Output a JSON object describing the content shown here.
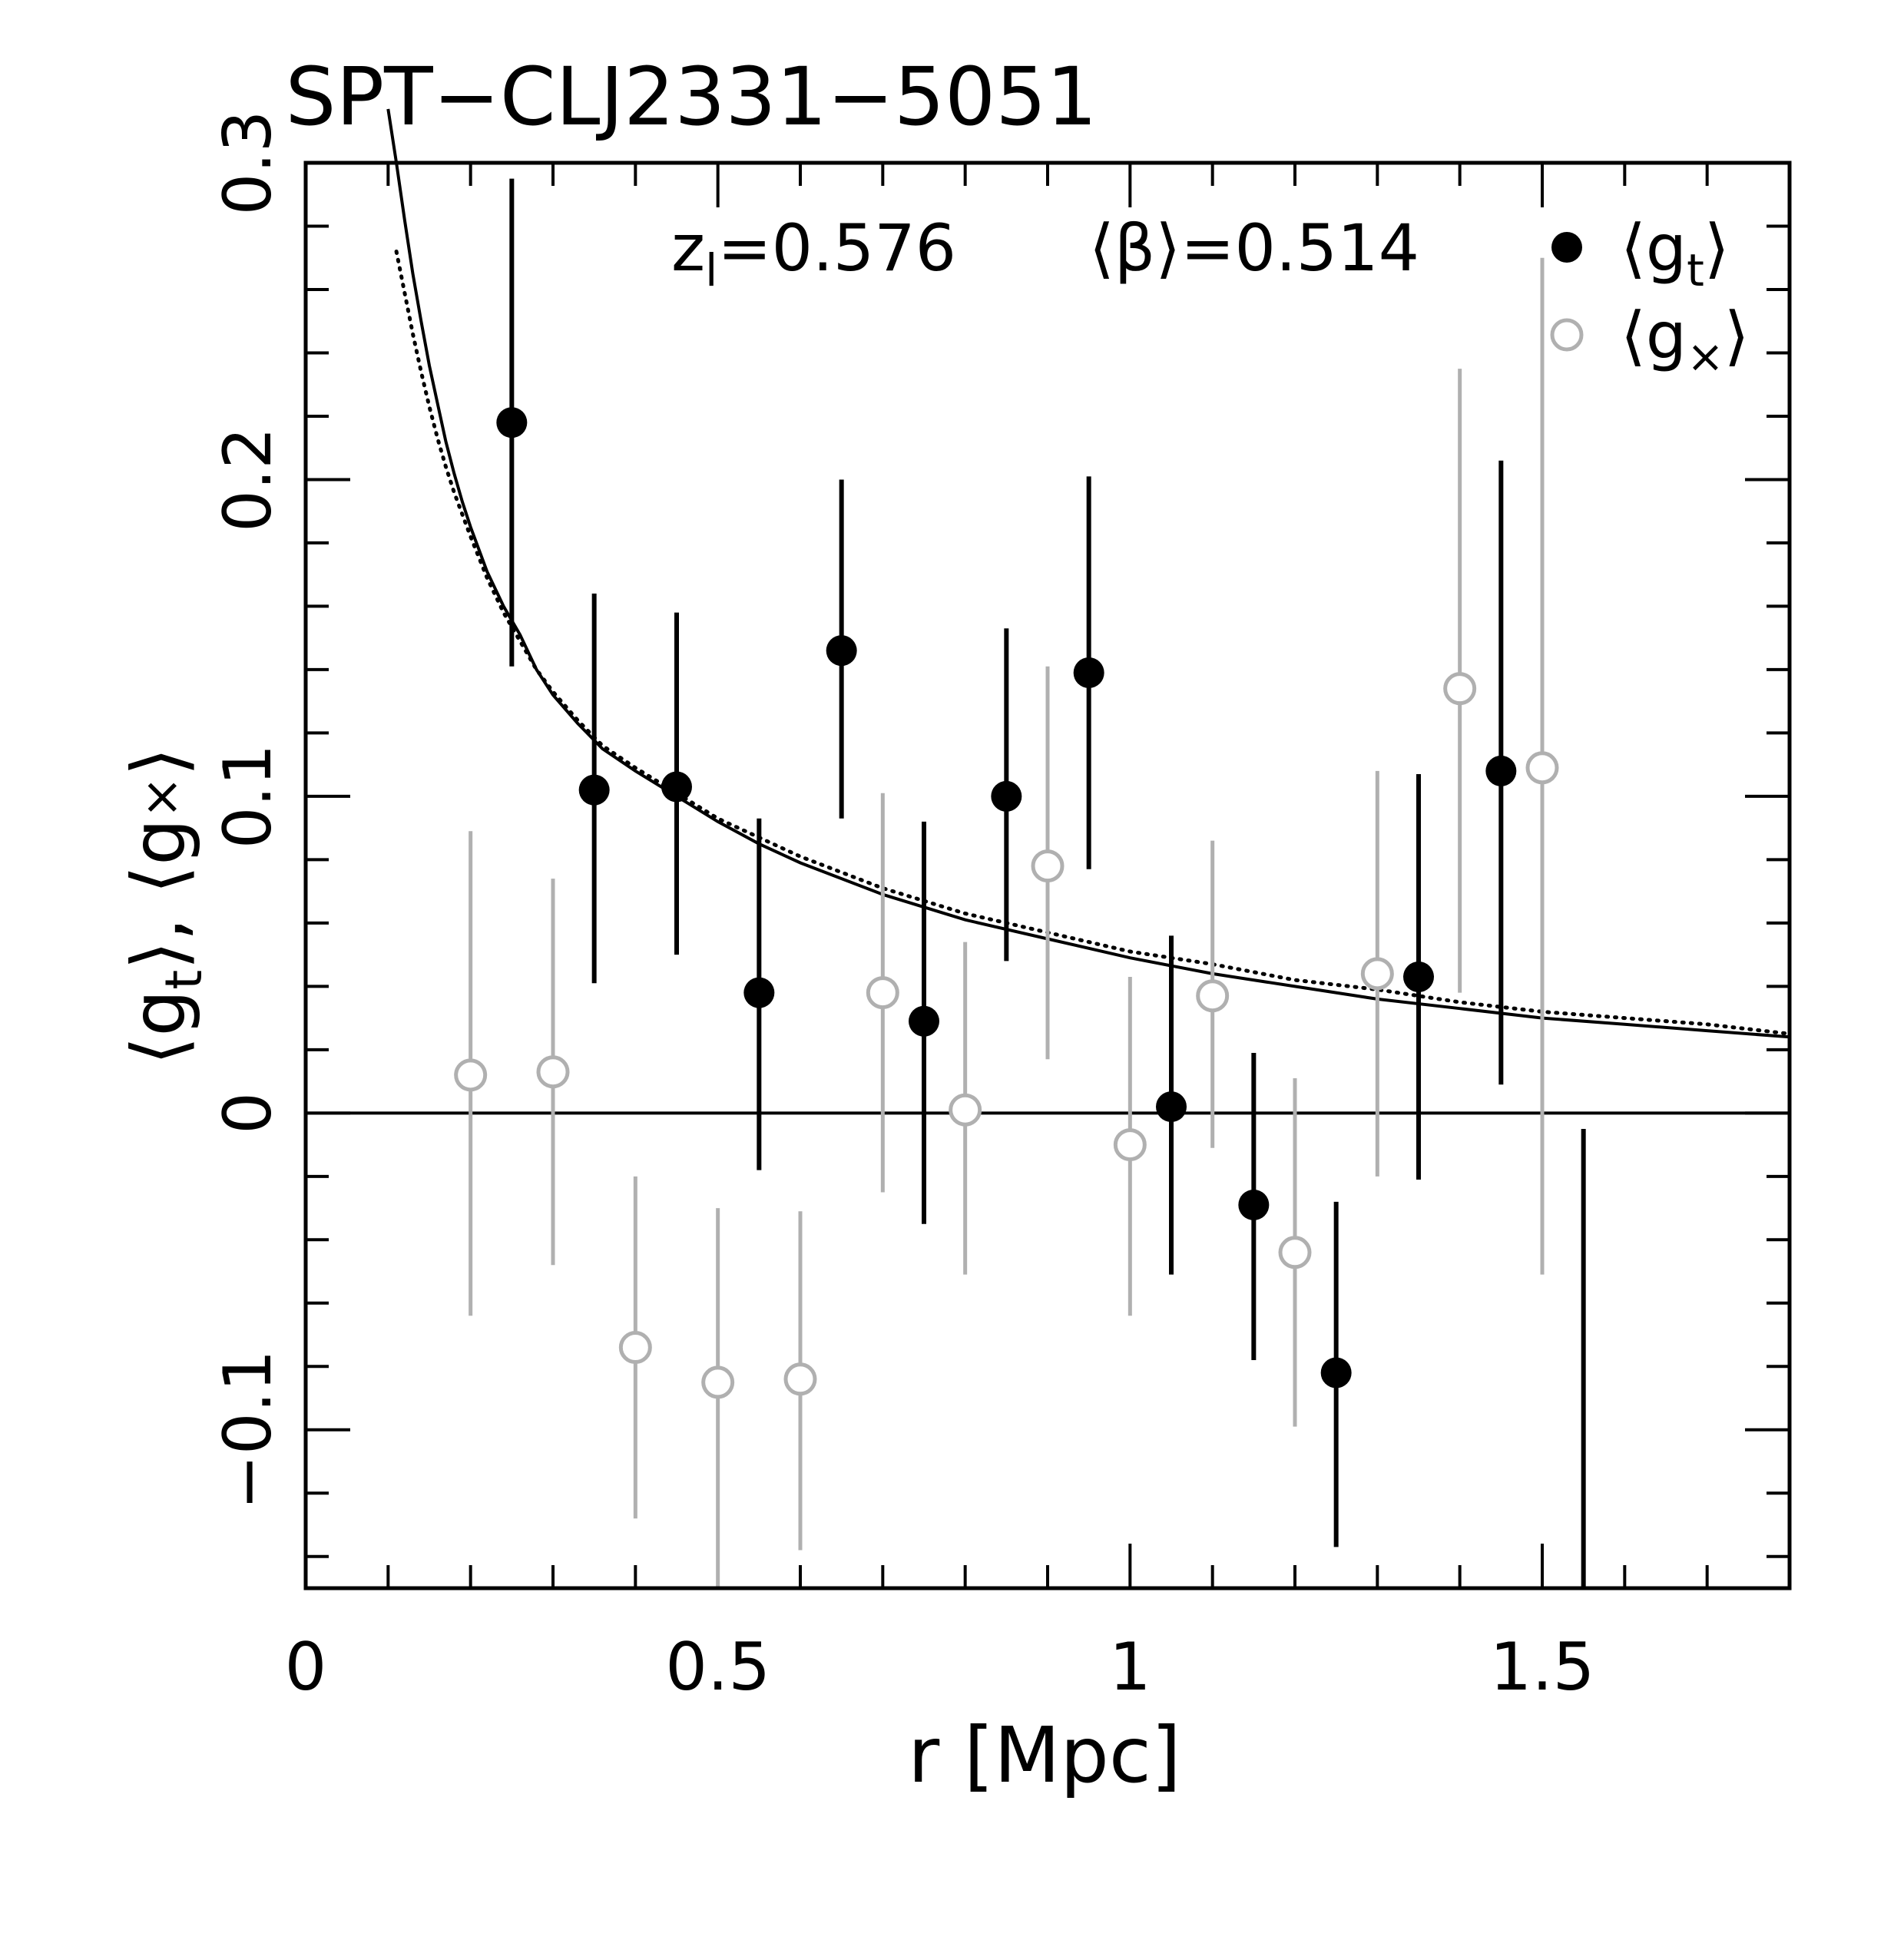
{
  "chart_data": {
    "type": "scatter",
    "title": "SPT−CLJ2331−5051",
    "xlabel": "r [Mpc]",
    "ylabel_parts": [
      "⟨g",
      "t",
      "⟩, ⟨g",
      "×",
      "⟩"
    ],
    "xlim": [
      0,
      1.8
    ],
    "ylim": [
      -0.15,
      0.3
    ],
    "x_ticks": [
      {
        "value": 0,
        "label": "0"
      },
      {
        "value": 0.5,
        "label": "0.5"
      },
      {
        "value": 1,
        "label": "1"
      },
      {
        "value": 1.5,
        "label": "1.5"
      }
    ],
    "y_ticks": [
      {
        "value": -0.1,
        "label": "−0.1"
      },
      {
        "value": 0,
        "label": "0"
      },
      {
        "value": 0.1,
        "label": "0.1"
      },
      {
        "value": 0.2,
        "label": "0.2"
      },
      {
        "value": 0.3,
        "label": "0.3"
      }
    ],
    "annotations": {
      "zl_text": "z",
      "zl_sub": "l",
      "zl_value": "=0.576",
      "beta_text": "⟨β⟩=0.514"
    },
    "legend": {
      "position": "top-right",
      "entries": [
        {
          "name_main": "⟨g",
          "name_sub": "t",
          "name_close": "⟩",
          "marker": "filled-circle",
          "color": "#000000"
        },
        {
          "name_main": "⟨g",
          "name_sub": "×",
          "name_close": "⟩",
          "marker": "open-circle",
          "color": "#b0b0b0"
        }
      ]
    },
    "series": [
      {
        "name": "gt",
        "marker": "filled-circle",
        "color": "#000000",
        "points": [
          {
            "x": 0.25,
            "y": 0.218,
            "lo": 0.141,
            "hi": 0.295
          },
          {
            "x": 0.35,
            "y": 0.102,
            "lo": 0.041,
            "hi": 0.164
          },
          {
            "x": 0.45,
            "y": 0.103,
            "lo": 0.05,
            "hi": 0.158
          },
          {
            "x": 0.55,
            "y": 0.038,
            "lo": -0.018,
            "hi": 0.093
          },
          {
            "x": 0.65,
            "y": 0.146,
            "lo": 0.093,
            "hi": 0.2
          },
          {
            "x": 0.75,
            "y": 0.029,
            "lo": -0.035,
            "hi": 0.092
          },
          {
            "x": 0.85,
            "y": 0.1,
            "lo": 0.048,
            "hi": 0.153
          },
          {
            "x": 0.95,
            "y": 0.139,
            "lo": 0.077,
            "hi": 0.201
          },
          {
            "x": 1.05,
            "y": 0.002,
            "lo": -0.051,
            "hi": 0.056
          },
          {
            "x": 1.15,
            "y": -0.029,
            "lo": -0.078,
            "hi": 0.019
          },
          {
            "x": 1.25,
            "y": -0.082,
            "lo": -0.137,
            "hi": -0.028
          },
          {
            "x": 1.35,
            "y": 0.043,
            "lo": -0.021,
            "hi": 0.107
          },
          {
            "x": 1.45,
            "y": 0.108,
            "lo": 0.009,
            "hi": 0.206
          },
          {
            "x": 1.55,
            "y": null,
            "lo": -0.15,
            "hi": -0.005
          }
        ]
      },
      {
        "name": "gx",
        "marker": "open-circle",
        "color": "#b0b0b0",
        "points": [
          {
            "x": 0.2,
            "y": 0.012,
            "lo": -0.064,
            "hi": 0.089
          },
          {
            "x": 0.3,
            "y": 0.013,
            "lo": -0.048,
            "hi": 0.074
          },
          {
            "x": 0.4,
            "y": -0.074,
            "lo": -0.128,
            "hi": -0.02
          },
          {
            "x": 0.5,
            "y": -0.085,
            "lo": -0.15,
            "hi": -0.03
          },
          {
            "x": 0.6,
            "y": -0.084,
            "lo": -0.138,
            "hi": -0.031
          },
          {
            "x": 0.7,
            "y": 0.038,
            "lo": -0.025,
            "hi": 0.101
          },
          {
            "x": 0.8,
            "y": 0.001,
            "lo": -0.051,
            "hi": 0.054
          },
          {
            "x": 0.9,
            "y": 0.078,
            "lo": 0.017,
            "hi": 0.141
          },
          {
            "x": 1.0,
            "y": -0.01,
            "lo": -0.064,
            "hi": 0.043
          },
          {
            "x": 1.1,
            "y": 0.037,
            "lo": -0.011,
            "hi": 0.086
          },
          {
            "x": 1.2,
            "y": -0.044,
            "lo": -0.099,
            "hi": 0.011
          },
          {
            "x": 1.3,
            "y": 0.044,
            "lo": -0.02,
            "hi": 0.108
          },
          {
            "x": 1.4,
            "y": 0.134,
            "lo": 0.038,
            "hi": 0.235
          },
          {
            "x": 1.5,
            "y": 0.109,
            "lo": -0.051,
            "hi": 0.27
          }
        ]
      }
    ],
    "model_curves": [
      {
        "name": "solid-fit",
        "style": "solid",
        "x": [
          0.1,
          0.11,
          0.12,
          0.13,
          0.14,
          0.15,
          0.16,
          0.17,
          0.18,
          0.19,
          0.2,
          0.22,
          0.24,
          0.26,
          0.28,
          0.3,
          0.33,
          0.36,
          0.4,
          0.45,
          0.5,
          0.55,
          0.6,
          0.7,
          0.8,
          0.9,
          1.0,
          1.1,
          1.2,
          1.3,
          1.4,
          1.5,
          1.6,
          1.7,
          1.8
        ],
        "y": [
          0.317,
          0.3,
          0.282,
          0.265,
          0.25,
          0.236,
          0.224,
          0.212,
          0.202,
          0.193,
          0.185,
          0.171,
          0.16,
          0.151,
          0.14,
          0.132,
          0.123,
          0.115,
          0.108,
          0.1,
          0.092,
          0.085,
          0.079,
          0.069,
          0.061,
          0.055,
          0.049,
          0.044,
          0.04,
          0.036,
          0.033,
          0.03,
          0.028,
          0.026,
          0.024
        ]
      },
      {
        "name": "dotted-fit",
        "style": "dotted",
        "x": [
          0.11,
          0.12,
          0.13,
          0.14,
          0.15,
          0.16,
          0.17,
          0.18,
          0.19,
          0.2,
          0.22,
          0.24,
          0.26,
          0.28,
          0.3,
          0.33,
          0.36,
          0.4,
          0.45,
          0.5,
          0.55,
          0.6,
          0.7,
          0.8,
          0.9,
          1.0,
          1.1,
          1.2,
          1.3,
          1.4,
          1.5,
          1.6,
          1.7,
          1.8
        ],
        "y": [
          0.272,
          0.259,
          0.246,
          0.234,
          0.223,
          0.213,
          0.204,
          0.196,
          0.189,
          0.182,
          0.169,
          0.158,
          0.149,
          0.14,
          0.133,
          0.124,
          0.116,
          0.109,
          0.101,
          0.093,
          0.087,
          0.081,
          0.071,
          0.063,
          0.057,
          0.051,
          0.047,
          0.042,
          0.039,
          0.035,
          0.032,
          0.03,
          0.028,
          0.025
        ]
      }
    ]
  }
}
